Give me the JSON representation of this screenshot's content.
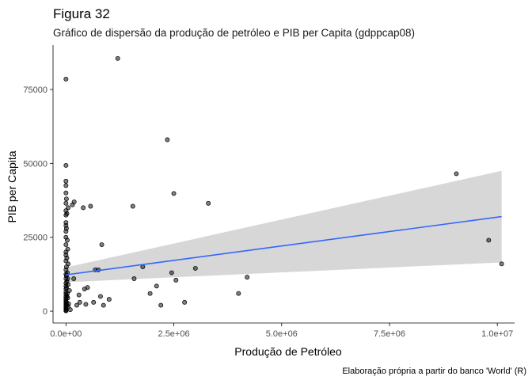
{
  "chart_data": {
    "type": "scatter",
    "title": "Figura 32",
    "subtitle": "Gráfico de dispersão da produção de petróleo e PIB per Capita (gdppcap08)",
    "xlabel": "Produção de Petróleo",
    "ylabel": "PIB per Capita",
    "caption": "Elaboração própria a partir do banco 'World' (R)",
    "xlim": [
      -300000,
      10400000
    ],
    "ylim": [
      -4000,
      90000
    ],
    "x_ticks": [
      0,
      2500000,
      5000000,
      7500000,
      10000000
    ],
    "x_tick_labels": [
      "0.0e+00",
      "2.5e+06",
      "5.0e+06",
      "7.5e+06",
      "1.0e+07"
    ],
    "y_ticks": [
      0,
      25000,
      50000,
      75000
    ],
    "y_tick_labels": [
      "0",
      "25000",
      "50000",
      "75000"
    ],
    "grid": false,
    "colors": {
      "points": "#000000",
      "line": "#3366ff",
      "band": "#d3d3d3",
      "axis": "#000000"
    },
    "points": [
      [
        0,
        78500
      ],
      [
        0,
        49300
      ],
      [
        0,
        44000
      ],
      [
        0,
        42500
      ],
      [
        0,
        40000
      ],
      [
        0,
        36500
      ],
      [
        0,
        34000
      ],
      [
        0,
        32500
      ],
      [
        0,
        30000
      ],
      [
        0,
        29000
      ],
      [
        0,
        27000
      ],
      [
        0,
        25000
      ],
      [
        0,
        22500
      ],
      [
        0,
        20000
      ],
      [
        0,
        19000
      ],
      [
        0,
        17000
      ],
      [
        0,
        14000
      ],
      [
        0,
        12500
      ],
      [
        0,
        11000
      ],
      [
        0,
        9500
      ],
      [
        0,
        8500
      ],
      [
        0,
        7500
      ],
      [
        0,
        6500
      ],
      [
        0,
        5800
      ],
      [
        0,
        5000
      ],
      [
        0,
        4300
      ],
      [
        0,
        3700
      ],
      [
        0,
        3200
      ],
      [
        0,
        2600
      ],
      [
        0,
        2100
      ],
      [
        0,
        1700
      ],
      [
        0,
        1300
      ],
      [
        0,
        900
      ],
      [
        0,
        600
      ],
      [
        0,
        300
      ],
      [
        0,
        100
      ],
      [
        10000,
        38000
      ],
      [
        10000,
        28000
      ],
      [
        10000,
        15000
      ],
      [
        10000,
        12000
      ],
      [
        10000,
        8000
      ],
      [
        10000,
        3000
      ],
      [
        20000,
        33000
      ],
      [
        20000,
        18000
      ],
      [
        20000,
        10000
      ],
      [
        20000,
        5000
      ],
      [
        20000,
        2000
      ],
      [
        30000,
        24000
      ],
      [
        30000,
        13000
      ],
      [
        30000,
        6000
      ],
      [
        40000,
        21000
      ],
      [
        40000,
        11000
      ],
      [
        40000,
        4500
      ],
      [
        50000,
        35000
      ],
      [
        50000,
        16000
      ],
      [
        50000,
        9000
      ],
      [
        50000,
        1500
      ],
      [
        60000,
        2500
      ],
      [
        80000,
        7000
      ],
      [
        100000,
        500
      ],
      [
        150000,
        36000
      ],
      [
        190000,
        37000
      ],
      [
        180000,
        11000
      ],
      [
        250000,
        2000
      ],
      [
        300000,
        5500
      ],
      [
        320000,
        3000
      ],
      [
        400000,
        35000
      ],
      [
        430000,
        7500
      ],
      [
        460000,
        2300
      ],
      [
        500000,
        8000
      ],
      [
        570000,
        35500
      ],
      [
        640000,
        3000
      ],
      [
        680000,
        14000
      ],
      [
        750000,
        14000
      ],
      [
        800000,
        5000
      ],
      [
        830000,
        22500
      ],
      [
        870000,
        2000
      ],
      [
        1000000,
        4000
      ],
      [
        1200000,
        85500
      ],
      [
        1550000,
        35500
      ],
      [
        1580000,
        11000
      ],
      [
        1780000,
        15000
      ],
      [
        1950000,
        6000
      ],
      [
        2100000,
        8500
      ],
      [
        2200000,
        2000
      ],
      [
        2350000,
        58000
      ],
      [
        2500000,
        39800
      ],
      [
        2450000,
        13000
      ],
      [
        2550000,
        10500
      ],
      [
        2750000,
        3000
      ],
      [
        3000000,
        14500
      ],
      [
        3300000,
        36500
      ],
      [
        4000000,
        6000
      ],
      [
        4200000,
        11500
      ],
      [
        9050000,
        46500
      ],
      [
        9800000,
        24000
      ],
      [
        10100000,
        16000
      ]
    ],
    "fit": {
      "method": "lm",
      "x": [
        0,
        10100000
      ],
      "y": [
        12300,
        32000
      ],
      "ci_low": [
        9800,
        16500
      ],
      "ci_high": [
        14800,
        47500
      ]
    }
  }
}
